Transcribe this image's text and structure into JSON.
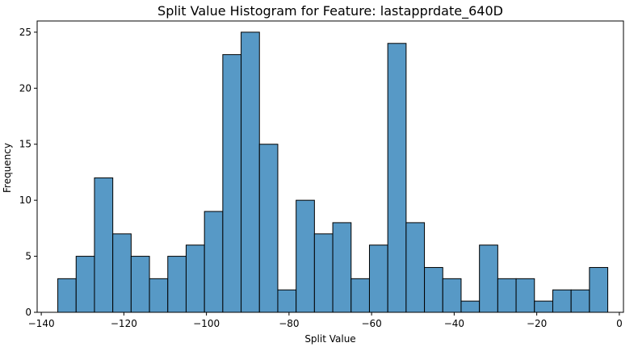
{
  "chart_data": {
    "type": "bar",
    "title": "Split Value Histogram for Feature: lastapprdate_640D",
    "xlabel": "Split Value",
    "ylabel": "Frequency",
    "xlim": [
      -141,
      1
    ],
    "ylim": [
      0,
      26
    ],
    "xticks": [
      -140,
      -120,
      -100,
      -80,
      -60,
      -40,
      -20,
      0
    ],
    "xtick_labels": [
      "−140",
      "−120",
      "−100",
      "−80",
      "−60",
      "−40",
      "−20",
      "0"
    ],
    "yticks": [
      0,
      5,
      10,
      15,
      20,
      25
    ],
    "ytick_labels": [
      "0",
      "5",
      "10",
      "15",
      "20",
      "25"
    ],
    "bin_start": -136,
    "bin_width": 4.44,
    "values": [
      3,
      5,
      12,
      7,
      5,
      3,
      5,
      6,
      9,
      23,
      25,
      15,
      2,
      10,
      7,
      8,
      3,
      6,
      24,
      8,
      4,
      3,
      1,
      6,
      3,
      3,
      1,
      2,
      2,
      4
    ],
    "bar_color": "#5799c6",
    "edge_color": "#000000",
    "grid": false,
    "legend": "none"
  }
}
